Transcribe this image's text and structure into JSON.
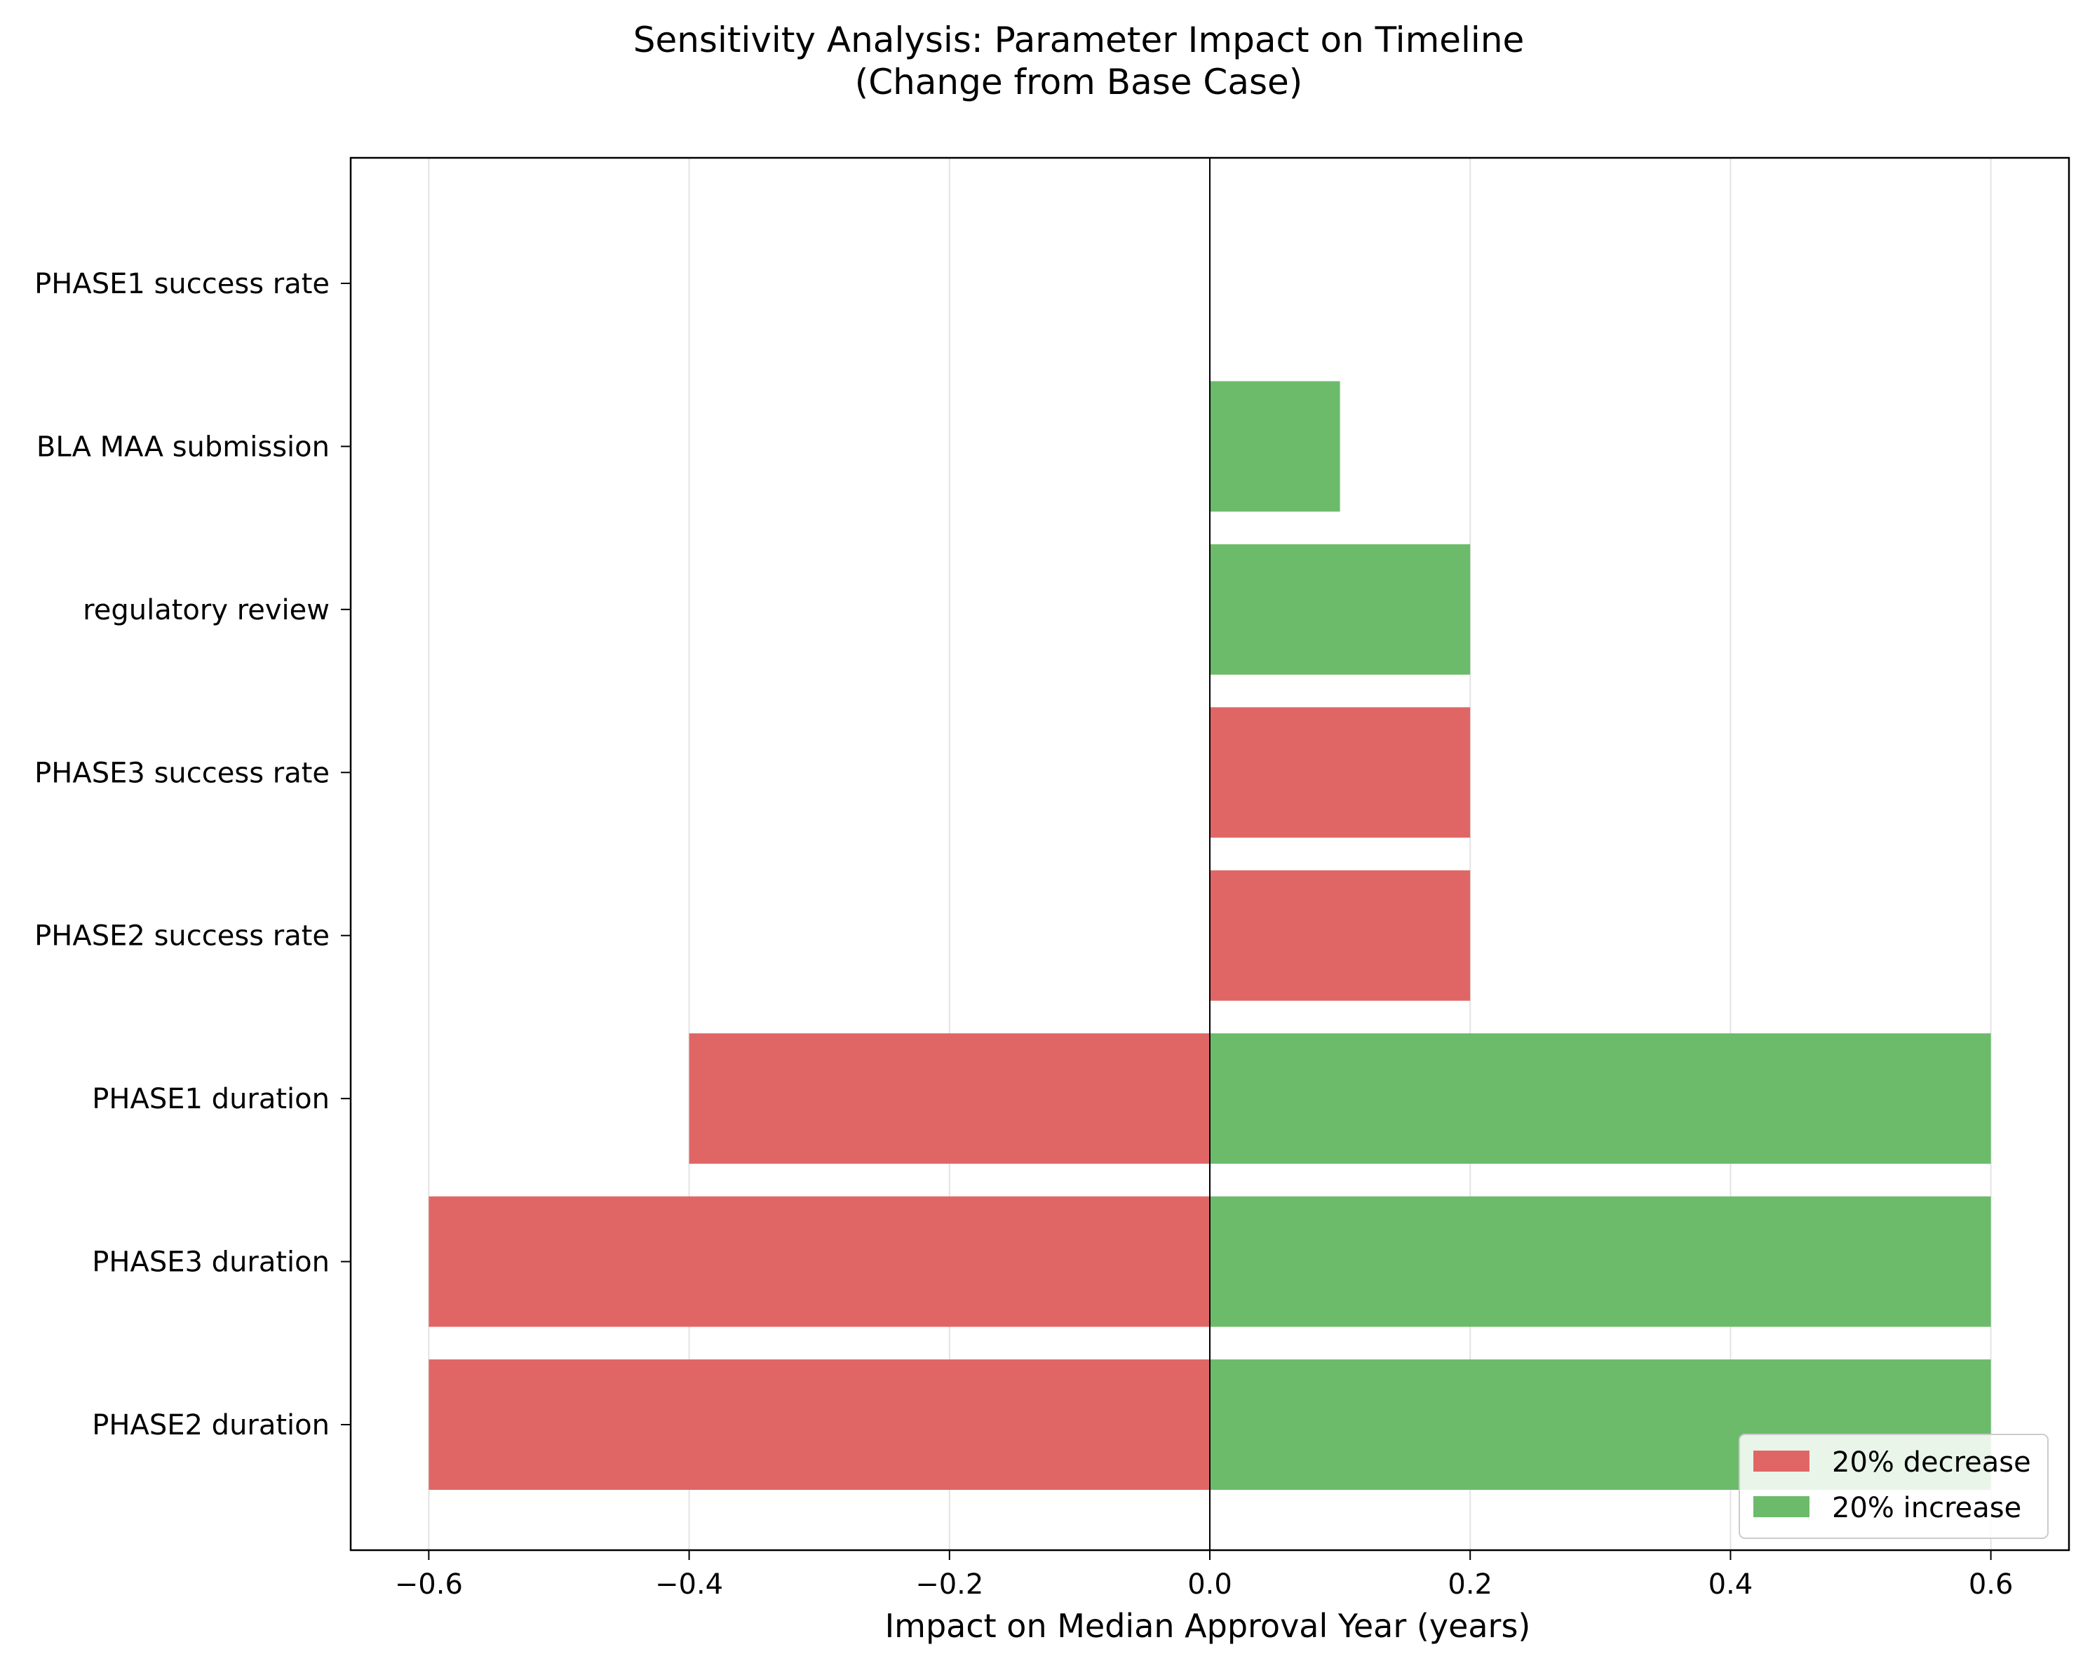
{
  "chart_data": {
    "type": "bar",
    "orientation": "horizontal",
    "title_line1": "Sensitivity Analysis: Parameter Impact on Timeline",
    "title_line2": "(Change from Base Case)",
    "xlabel": "Impact on Median Approval Year (years)",
    "ylabel": "",
    "xlim": [
      -0.66,
      0.66
    ],
    "xticks": [
      -0.6,
      -0.4,
      -0.2,
      0.0,
      0.2,
      0.4,
      0.6
    ],
    "xtick_labels": [
      "−0.6",
      "−0.4",
      "−0.2",
      "0.0",
      "0.2",
      "0.4",
      "0.6"
    ],
    "grid": "vertical",
    "legend_position": "lower-right",
    "categories": [
      "PHASE2 duration",
      "PHASE3 duration",
      "PHASE1 duration",
      "PHASE2 success rate",
      "PHASE3 success rate",
      "regulatory review",
      "BLA MAA submission",
      "PHASE1 success rate"
    ],
    "series": [
      {
        "name": "20% decrease",
        "color": "#e06666",
        "values": [
          -0.6,
          -0.6,
          -0.4,
          0.2,
          0.2,
          0.0,
          0.0,
          0.0
        ]
      },
      {
        "name": "20% increase",
        "color": "#6bbb6b",
        "values": [
          0.6,
          0.6,
          0.6,
          0.0,
          0.0,
          0.2,
          0.1,
          0.0
        ]
      }
    ]
  }
}
